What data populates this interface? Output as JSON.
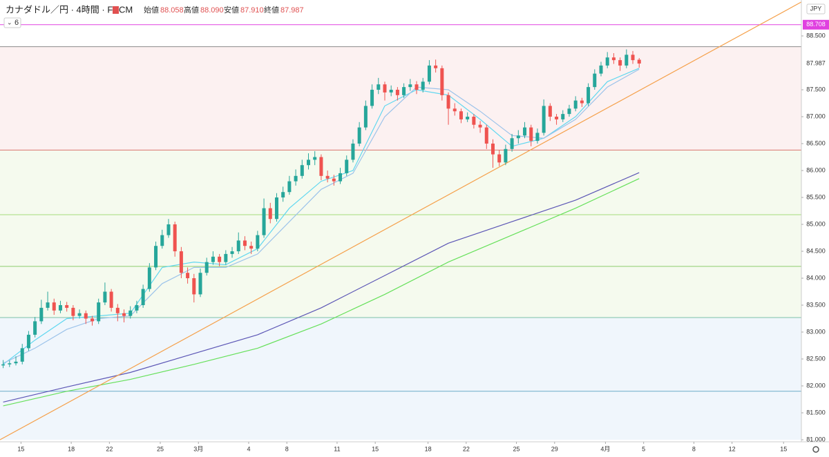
{
  "chart_data": {
    "type": "candlestick",
    "title": "カナダドル／円 · 4時間 · FXCM",
    "indicator_count": "6",
    "currency": "JPY",
    "ohlc_header": [
      {
        "label": "始値",
        "value": "88.058"
      },
      {
        "label": "高値",
        "value": "88.090"
      },
      {
        "label": "安値",
        "value": "87.910"
      },
      {
        "label": "終値",
        "value": "87.987"
      }
    ],
    "up_color": "#26a69a",
    "down_color": "#ef5350",
    "candles": [
      [
        82.38,
        82.48,
        82.33,
        82.4
      ],
      [
        82.4,
        82.47,
        82.35,
        82.42
      ],
      [
        82.42,
        82.55,
        82.38,
        82.45
      ],
      [
        82.45,
        82.78,
        82.4,
        82.7
      ],
      [
        82.7,
        83.02,
        82.65,
        82.95
      ],
      [
        82.95,
        83.28,
        82.9,
        83.2
      ],
      [
        83.2,
        83.6,
        83.15,
        83.45
      ],
      [
        83.45,
        83.75,
        83.4,
        83.55
      ],
      [
        83.55,
        83.62,
        83.32,
        83.4
      ],
      [
        83.4,
        83.58,
        83.35,
        83.5
      ],
      [
        83.5,
        83.56,
        83.38,
        83.45
      ],
      [
        83.45,
        83.5,
        83.22,
        83.3
      ],
      [
        83.3,
        83.42,
        83.25,
        83.35
      ],
      [
        83.35,
        83.4,
        83.15,
        83.25
      ],
      [
        83.25,
        83.3,
        83.12,
        83.2
      ],
      [
        83.2,
        83.62,
        83.15,
        83.55
      ],
      [
        83.55,
        83.92,
        83.5,
        83.75
      ],
      [
        83.75,
        83.8,
        83.38,
        83.45
      ],
      [
        83.45,
        83.52,
        83.2,
        83.35
      ],
      [
        83.35,
        83.42,
        83.18,
        83.3
      ],
      [
        83.3,
        83.48,
        83.25,
        83.4
      ],
      [
        83.4,
        83.58,
        83.35,
        83.5
      ],
      [
        83.5,
        83.88,
        83.45,
        83.8
      ],
      [
        83.8,
        84.28,
        83.75,
        84.2
      ],
      [
        84.2,
        84.68,
        84.15,
        84.6
      ],
      [
        84.6,
        84.9,
        84.55,
        84.8
      ],
      [
        84.8,
        85.1,
        84.75,
        85.0
      ],
      [
        85.0,
        85.05,
        84.4,
        84.5
      ],
      [
        84.5,
        84.58,
        84.0,
        84.1
      ],
      [
        84.1,
        84.2,
        83.9,
        84.0
      ],
      [
        84.0,
        84.08,
        83.55,
        83.7
      ],
      [
        83.7,
        84.18,
        83.65,
        84.1
      ],
      [
        84.1,
        84.38,
        84.05,
        84.3
      ],
      [
        84.3,
        84.5,
        84.25,
        84.4
      ],
      [
        84.4,
        84.45,
        84.22,
        84.3
      ],
      [
        84.3,
        84.52,
        84.25,
        84.45
      ],
      [
        84.45,
        84.58,
        84.38,
        84.5
      ],
      [
        84.5,
        84.85,
        84.45,
        84.7
      ],
      [
        84.7,
        84.78,
        84.52,
        84.6
      ],
      [
        84.6,
        84.68,
        84.45,
        84.55
      ],
      [
        84.55,
        84.88,
        84.5,
        84.8
      ],
      [
        84.8,
        85.48,
        84.75,
        85.3
      ],
      [
        85.3,
        85.4,
        85.02,
        85.1
      ],
      [
        85.1,
        85.58,
        85.05,
        85.5
      ],
      [
        85.5,
        85.7,
        85.42,
        85.6
      ],
      [
        85.6,
        85.9,
        85.55,
        85.8
      ],
      [
        85.8,
        86.02,
        85.72,
        85.9
      ],
      [
        85.9,
        86.2,
        85.85,
        86.1
      ],
      [
        86.1,
        86.32,
        86.02,
        86.2
      ],
      [
        86.2,
        86.36,
        86.1,
        86.25
      ],
      [
        86.25,
        86.3,
        85.82,
        85.9
      ],
      [
        85.9,
        86.0,
        85.78,
        85.85
      ],
      [
        85.85,
        85.92,
        85.72,
        85.8
      ],
      [
        85.8,
        86.05,
        85.75,
        85.95
      ],
      [
        85.95,
        86.28,
        85.9,
        86.2
      ],
      [
        86.2,
        86.58,
        86.15,
        86.5
      ],
      [
        86.5,
        86.9,
        86.45,
        86.8
      ],
      [
        86.8,
        87.3,
        86.75,
        87.2
      ],
      [
        87.2,
        87.6,
        87.15,
        87.5
      ],
      [
        87.5,
        87.72,
        87.42,
        87.6
      ],
      [
        87.6,
        87.65,
        87.3,
        87.45
      ],
      [
        87.45,
        87.58,
        87.38,
        87.5
      ],
      [
        87.5,
        87.55,
        87.3,
        87.4
      ],
      [
        87.4,
        87.62,
        87.35,
        87.55
      ],
      [
        87.55,
        87.7,
        87.48,
        87.6
      ],
      [
        87.6,
        87.66,
        87.42,
        87.5
      ],
      [
        87.5,
        87.72,
        87.45,
        87.65
      ],
      [
        87.65,
        88.05,
        87.6,
        87.95
      ],
      [
        87.95,
        88.06,
        87.82,
        87.9
      ],
      [
        87.9,
        87.95,
        87.3,
        87.4
      ],
      [
        87.4,
        87.45,
        86.85,
        87.15
      ],
      [
        87.15,
        87.25,
        87.02,
        87.1
      ],
      [
        87.1,
        87.15,
        86.88,
        86.95
      ],
      [
        86.95,
        87.08,
        86.9,
        87.0
      ],
      [
        87.0,
        87.05,
        86.78,
        86.85
      ],
      [
        86.85,
        86.92,
        86.7,
        86.8
      ],
      [
        86.8,
        86.85,
        86.4,
        86.5
      ],
      [
        86.5,
        86.58,
        86.05,
        86.3
      ],
      [
        86.3,
        86.38,
        86.08,
        86.15
      ],
      [
        86.15,
        86.48,
        86.1,
        86.4
      ],
      [
        86.4,
        86.68,
        86.35,
        86.6
      ],
      [
        86.6,
        86.75,
        86.5,
        86.65
      ],
      [
        86.65,
        86.9,
        86.6,
        86.8
      ],
      [
        86.8,
        86.85,
        86.45,
        86.55
      ],
      [
        86.55,
        86.78,
        86.5,
        86.7
      ],
      [
        86.7,
        87.32,
        86.65,
        87.2
      ],
      [
        87.2,
        87.25,
        86.92,
        87.0
      ],
      [
        87.0,
        87.05,
        86.85,
        86.95
      ],
      [
        86.95,
        87.12,
        86.9,
        87.05
      ],
      [
        87.05,
        87.22,
        87.0,
        87.15
      ],
      [
        87.15,
        87.38,
        87.1,
        87.3
      ],
      [
        87.3,
        87.35,
        87.18,
        87.25
      ],
      [
        87.25,
        87.62,
        87.2,
        87.55
      ],
      [
        87.55,
        87.88,
        87.5,
        87.8
      ],
      [
        87.8,
        88.02,
        87.75,
        87.95
      ],
      [
        87.95,
        88.2,
        87.9,
        88.1
      ],
      [
        88.1,
        88.18,
        87.98,
        88.05
      ],
      [
        88.05,
        88.1,
        87.85,
        87.95
      ],
      [
        87.95,
        88.25,
        87.9,
        88.15
      ],
      [
        88.15,
        88.22,
        87.98,
        88.05
      ],
      [
        88.058,
        88.09,
        87.91,
        87.987
      ]
    ],
    "lines": [
      {
        "color": "#5fd7f0",
        "x": [
          0,
          5,
          10,
          15,
          20,
          25,
          30,
          35,
          40,
          45,
          50,
          55,
          60,
          65,
          70,
          75,
          80,
          85,
          90,
          95,
          100
        ],
        "values": [
          82.4,
          82.85,
          83.25,
          83.3,
          83.35,
          84.2,
          84.3,
          84.25,
          84.55,
          85.3,
          85.8,
          86.0,
          87.2,
          87.5,
          87.4,
          86.95,
          86.45,
          86.6,
          87.0,
          87.65,
          87.9
        ]
      },
      {
        "color": "#9cc3ea",
        "x": [
          0,
          5,
          10,
          15,
          20,
          25,
          30,
          35,
          40,
          45,
          50,
          55,
          60,
          65,
          70,
          75,
          80,
          85,
          90,
          95,
          100
        ],
        "values": [
          82.42,
          82.7,
          83.05,
          83.25,
          83.3,
          83.9,
          84.2,
          84.2,
          84.45,
          85.05,
          85.65,
          85.95,
          87.0,
          87.55,
          87.5,
          87.1,
          86.65,
          86.6,
          86.95,
          87.55,
          87.88
        ]
      },
      {
        "color": "#5b55b5",
        "x": [
          0,
          10,
          20,
          30,
          40,
          50,
          60,
          70,
          80,
          90,
          100
        ],
        "values": [
          81.7,
          81.98,
          82.25,
          82.6,
          82.95,
          83.45,
          84.05,
          84.65,
          85.05,
          85.45,
          85.96
        ]
      },
      {
        "color": "#66e05a",
        "x": [
          0,
          10,
          20,
          30,
          40,
          50,
          60,
          70,
          80,
          90,
          100
        ],
        "values": [
          81.63,
          81.9,
          82.12,
          82.4,
          82.7,
          83.15,
          83.7,
          84.3,
          84.8,
          85.3,
          85.85
        ]
      },
      {
        "color": "#f5a04a",
        "x": [
          -0.5,
          125.5
        ],
        "values": [
          81.0,
          89.13
        ]
      }
    ],
    "zones": [
      {
        "from": 86.38,
        "to": 88.3,
        "color": "#fcf1f1"
      },
      {
        "from": 83.27,
        "to": 86.38,
        "color": "#f5faee"
      },
      {
        "from": 81.0,
        "to": 83.27,
        "color": "#f0f6fc"
      }
    ],
    "levels": [
      {
        "value": 88.708,
        "color": "#e040e0",
        "label": "88.708"
      },
      {
        "value": 88.3,
        "color": "#8a8a8a"
      },
      {
        "value": 86.38,
        "color": "#d9736e"
      },
      {
        "value": 85.18,
        "color": "#a5dc7a"
      },
      {
        "value": 84.22,
        "color": "#8ccc6c"
      },
      {
        "value": 83.27,
        "color": "#7cc0a8"
      },
      {
        "value": 81.9,
        "color": "#6aaac8"
      }
    ],
    "last_price": {
      "value": 87.987,
      "label": "87.987"
    },
    "xlim": [
      -0.5,
      125.5
    ],
    "ylim": [
      81.0,
      89.167
    ],
    "yticks": [
      {
        "value": 81.0,
        "label": "81.000"
      },
      {
        "value": 81.5,
        "label": "81.500"
      },
      {
        "value": 82.0,
        "label": "82.000"
      },
      {
        "value": 82.5,
        "label": "82.500"
      },
      {
        "value": 83.0,
        "label": "83.000"
      },
      {
        "value": 83.5,
        "label": "83.500"
      },
      {
        "value": 84.0,
        "label": "84.000"
      },
      {
        "value": 84.5,
        "label": "84.500"
      },
      {
        "value": 85.0,
        "label": "85.000"
      },
      {
        "value": 85.5,
        "label": "85.500"
      },
      {
        "value": 86.0,
        "label": "86.000"
      },
      {
        "value": 86.5,
        "label": "86.500"
      },
      {
        "value": 87.0,
        "label": "87.000"
      },
      {
        "value": 87.5,
        "label": "87.500"
      },
      {
        "value": 88.5,
        "label": "88.500"
      }
    ],
    "xticks": [
      {
        "value": 2.8,
        "label": "15"
      },
      {
        "value": 10.7,
        "label": "18"
      },
      {
        "value": 16.7,
        "label": "22"
      },
      {
        "value": 24.7,
        "label": "25"
      },
      {
        "value": 30.7,
        "label": "3月"
      },
      {
        "value": 38.6,
        "label": "4"
      },
      {
        "value": 44.6,
        "label": "8"
      },
      {
        "value": 52.5,
        "label": "11"
      },
      {
        "value": 58.5,
        "label": "15"
      },
      {
        "value": 66.8,
        "label": "18"
      },
      {
        "value": 72.8,
        "label": "22"
      },
      {
        "value": 80.7,
        "label": "25"
      },
      {
        "value": 86.7,
        "label": "29"
      },
      {
        "value": 94.7,
        "label": "4月"
      },
      {
        "value": 100.7,
        "label": "5"
      },
      {
        "value": 108.6,
        "label": "8"
      },
      {
        "value": 114.6,
        "label": "12"
      },
      {
        "value": 122.7,
        "label": "15"
      }
    ]
  }
}
